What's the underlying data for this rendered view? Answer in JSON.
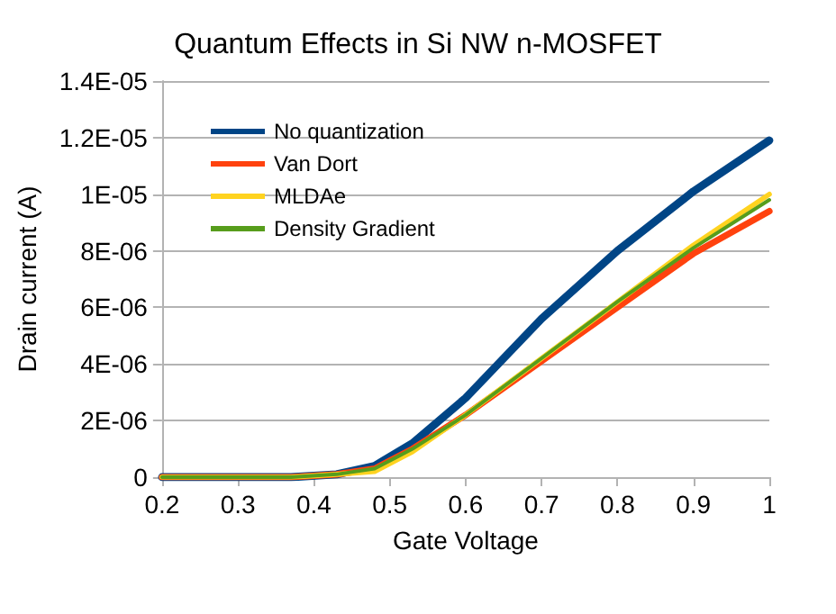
{
  "chart_data": {
    "type": "line",
    "title": "Quantum Effects in Si NW n-MOSFET",
    "xlabel": "Gate Voltage",
    "ylabel": "Drain current (A)",
    "x": [
      0.2,
      0.3,
      0.37,
      0.43,
      0.48,
      0.53,
      0.6,
      0.7,
      0.8,
      0.9,
      1
    ],
    "series": [
      {
        "name": "No quantization",
        "color": "#004586",
        "values": [
          0,
          0,
          0,
          1e-07,
          4e-07,
          1.2e-06,
          2.8e-06,
          5.6e-06,
          8e-06,
          1.01e-05,
          1.19e-05
        ]
      },
      {
        "name": "Van Dort",
        "color": "#ff420e",
        "values": [
          0,
          0,
          0,
          1e-07,
          3e-07,
          1e-06,
          2.2e-06,
          4.1e-06,
          6e-06,
          7.9e-06,
          9.4e-06
        ]
      },
      {
        "name": "MLDAe",
        "color": "#ffd320",
        "values": [
          0,
          0,
          0,
          1e-07,
          2e-07,
          9e-07,
          2.2e-06,
          4.2e-06,
          6.2e-06,
          8.2e-06,
          1e-05
        ]
      },
      {
        "name": "Density Gradient",
        "color": "#579d1c",
        "values": [
          0,
          0,
          0,
          1e-07,
          3e-07,
          1e-06,
          2.2e-06,
          4.2e-06,
          6.2e-06,
          8.1e-06,
          9.8e-06
        ]
      }
    ],
    "xlim": [
      0.2,
      1
    ],
    "xticks": [
      0.2,
      0.3,
      0.4,
      0.5,
      0.6,
      0.7,
      0.8,
      0.9,
      1
    ],
    "ylim": [
      0,
      1.4e-05
    ],
    "yticks": [
      0,
      {
        "value": 2e-06,
        "label": "2E-06"
      },
      {
        "value": 4e-06,
        "label": "4E-06"
      },
      {
        "value": 6e-06,
        "label": "6E-06"
      },
      {
        "value": 8e-06,
        "label": "8E-06"
      },
      {
        "value": 1e-05,
        "label": "1E-05"
      },
      {
        "value": 1.2e-05,
        "label": "1.2E-05"
      },
      {
        "value": 1.4e-05,
        "label": "1.4E-05"
      }
    ],
    "grid": "y",
    "legend": "top left",
    "marker": "none",
    "line_style": "solid"
  }
}
